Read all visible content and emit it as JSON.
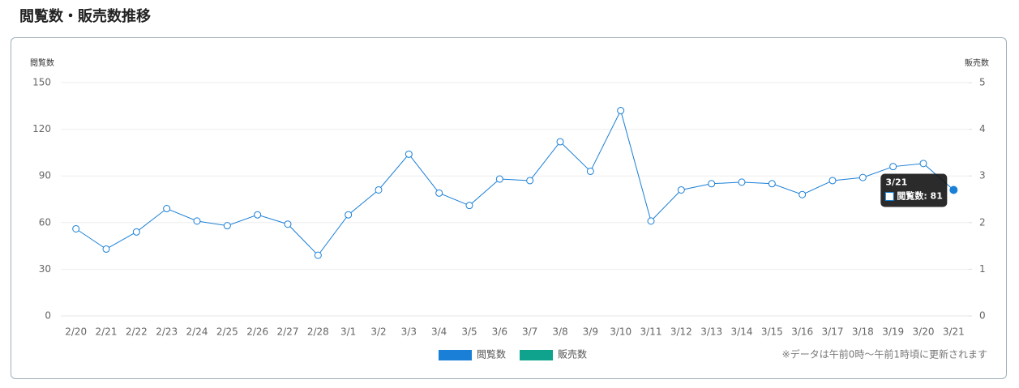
{
  "page_title": "閲覧数・販売数推移",
  "note": "※データは午前0時～午前1時頃に更新されます",
  "chart_data": {
    "type": "line",
    "y_label": "閲覧数",
    "y2_label": "販売数",
    "categories": [
      "2/20",
      "2/21",
      "2/22",
      "2/23",
      "2/24",
      "2/25",
      "2/26",
      "2/27",
      "2/28",
      "3/1",
      "3/2",
      "3/3",
      "3/4",
      "3/5",
      "3/6",
      "3/7",
      "3/8",
      "3/9",
      "3/10",
      "3/11",
      "3/12",
      "3/13",
      "3/14",
      "3/15",
      "3/16",
      "3/17",
      "3/18",
      "3/19",
      "3/20",
      "3/21"
    ],
    "series": [
      {
        "name": "閲覧数",
        "color": "#1a7fd6",
        "values": [
          56,
          43,
          54,
          69,
          61,
          58,
          65,
          59,
          39,
          65,
          81,
          104,
          79,
          71,
          88,
          87,
          112,
          93,
          132,
          61,
          81,
          85,
          86,
          85,
          78,
          87,
          89,
          96,
          98,
          81
        ]
      },
      {
        "name": "販売数",
        "color": "#0fa38e",
        "axis": "y2",
        "values": [
          null,
          null,
          null,
          null,
          null,
          null,
          null,
          null,
          null,
          null,
          null,
          null,
          null,
          null,
          null,
          null,
          null,
          null,
          null,
          null,
          null,
          null,
          null,
          null,
          null,
          null,
          null,
          null,
          null,
          null
        ]
      }
    ],
    "ylim": [
      0,
      150
    ],
    "yticks": [
      0,
      30,
      60,
      90,
      120,
      150
    ],
    "y2lim": [
      0,
      5
    ],
    "y2ticks": [
      0,
      1,
      2,
      3,
      4,
      5
    ],
    "grid": true,
    "legend": "bottom",
    "tooltip": {
      "title": "3/21",
      "label": "閲覧数: 81"
    }
  }
}
